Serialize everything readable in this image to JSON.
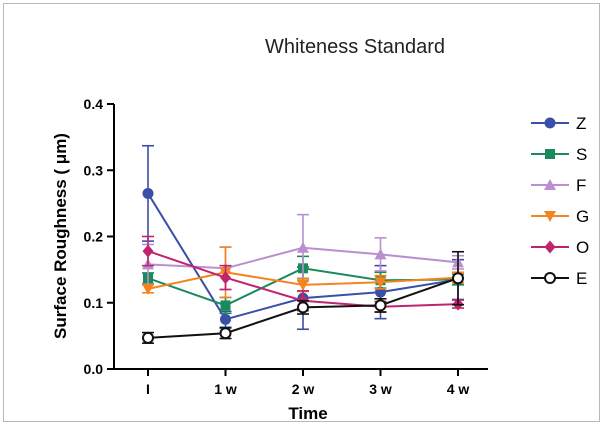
{
  "chart_data": {
    "type": "line",
    "title": "Whiteness Standard",
    "xlabel": "Time",
    "ylabel": "Surface Roughness ( μm)",
    "categories": [
      "I",
      "1 w",
      "2 w",
      "3 w",
      "4 w"
    ],
    "ylim": [
      0,
      0.4
    ],
    "yticks": [
      "0.0",
      "0.1",
      "0.2",
      "0.3",
      "0.4"
    ],
    "grid": false,
    "legend_position": "right",
    "series": [
      {
        "name": "Z",
        "color": "#3a4fa8",
        "marker": "circle-filled",
        "values": [
          0.265,
          0.075,
          0.107,
          0.116,
          0.135
        ],
        "errors": [
          0.072,
          0.012,
          0.047,
          0.04,
          0.03
        ]
      },
      {
        "name": "S",
        "color": "#1b8a5a",
        "marker": "square",
        "values": [
          0.137,
          0.096,
          0.152,
          0.134,
          0.135
        ],
        "errors": [
          0.008,
          0.012,
          0.018,
          0.012,
          0.008
        ]
      },
      {
        "name": "F",
        "color": "#b98fd0",
        "marker": "triangle-up",
        "values": [
          0.158,
          0.152,
          0.183,
          0.173,
          0.161
        ],
        "errors": [
          0.03,
          0.032,
          0.05,
          0.025,
          0.01
        ]
      },
      {
        "name": "G",
        "color": "#f5841f",
        "marker": "triangle-down",
        "values": [
          0.121,
          0.146,
          0.127,
          0.131,
          0.138
        ],
        "errors": [
          0.006,
          0.038,
          0.01,
          0.01,
          0.008
        ]
      },
      {
        "name": "O",
        "color": "#c0246e",
        "marker": "diamond",
        "values": [
          0.178,
          0.138,
          0.103,
          0.094,
          0.098
        ],
        "errors": [
          0.022,
          0.018,
          0.015,
          0.008,
          0.006
        ]
      },
      {
        "name": "E",
        "color": "#111111",
        "marker": "circle-open",
        "values": [
          0.047,
          0.054,
          0.093,
          0.096,
          0.137
        ],
        "errors": [
          0.008,
          0.008,
          0.01,
          0.01,
          0.04
        ]
      }
    ]
  }
}
